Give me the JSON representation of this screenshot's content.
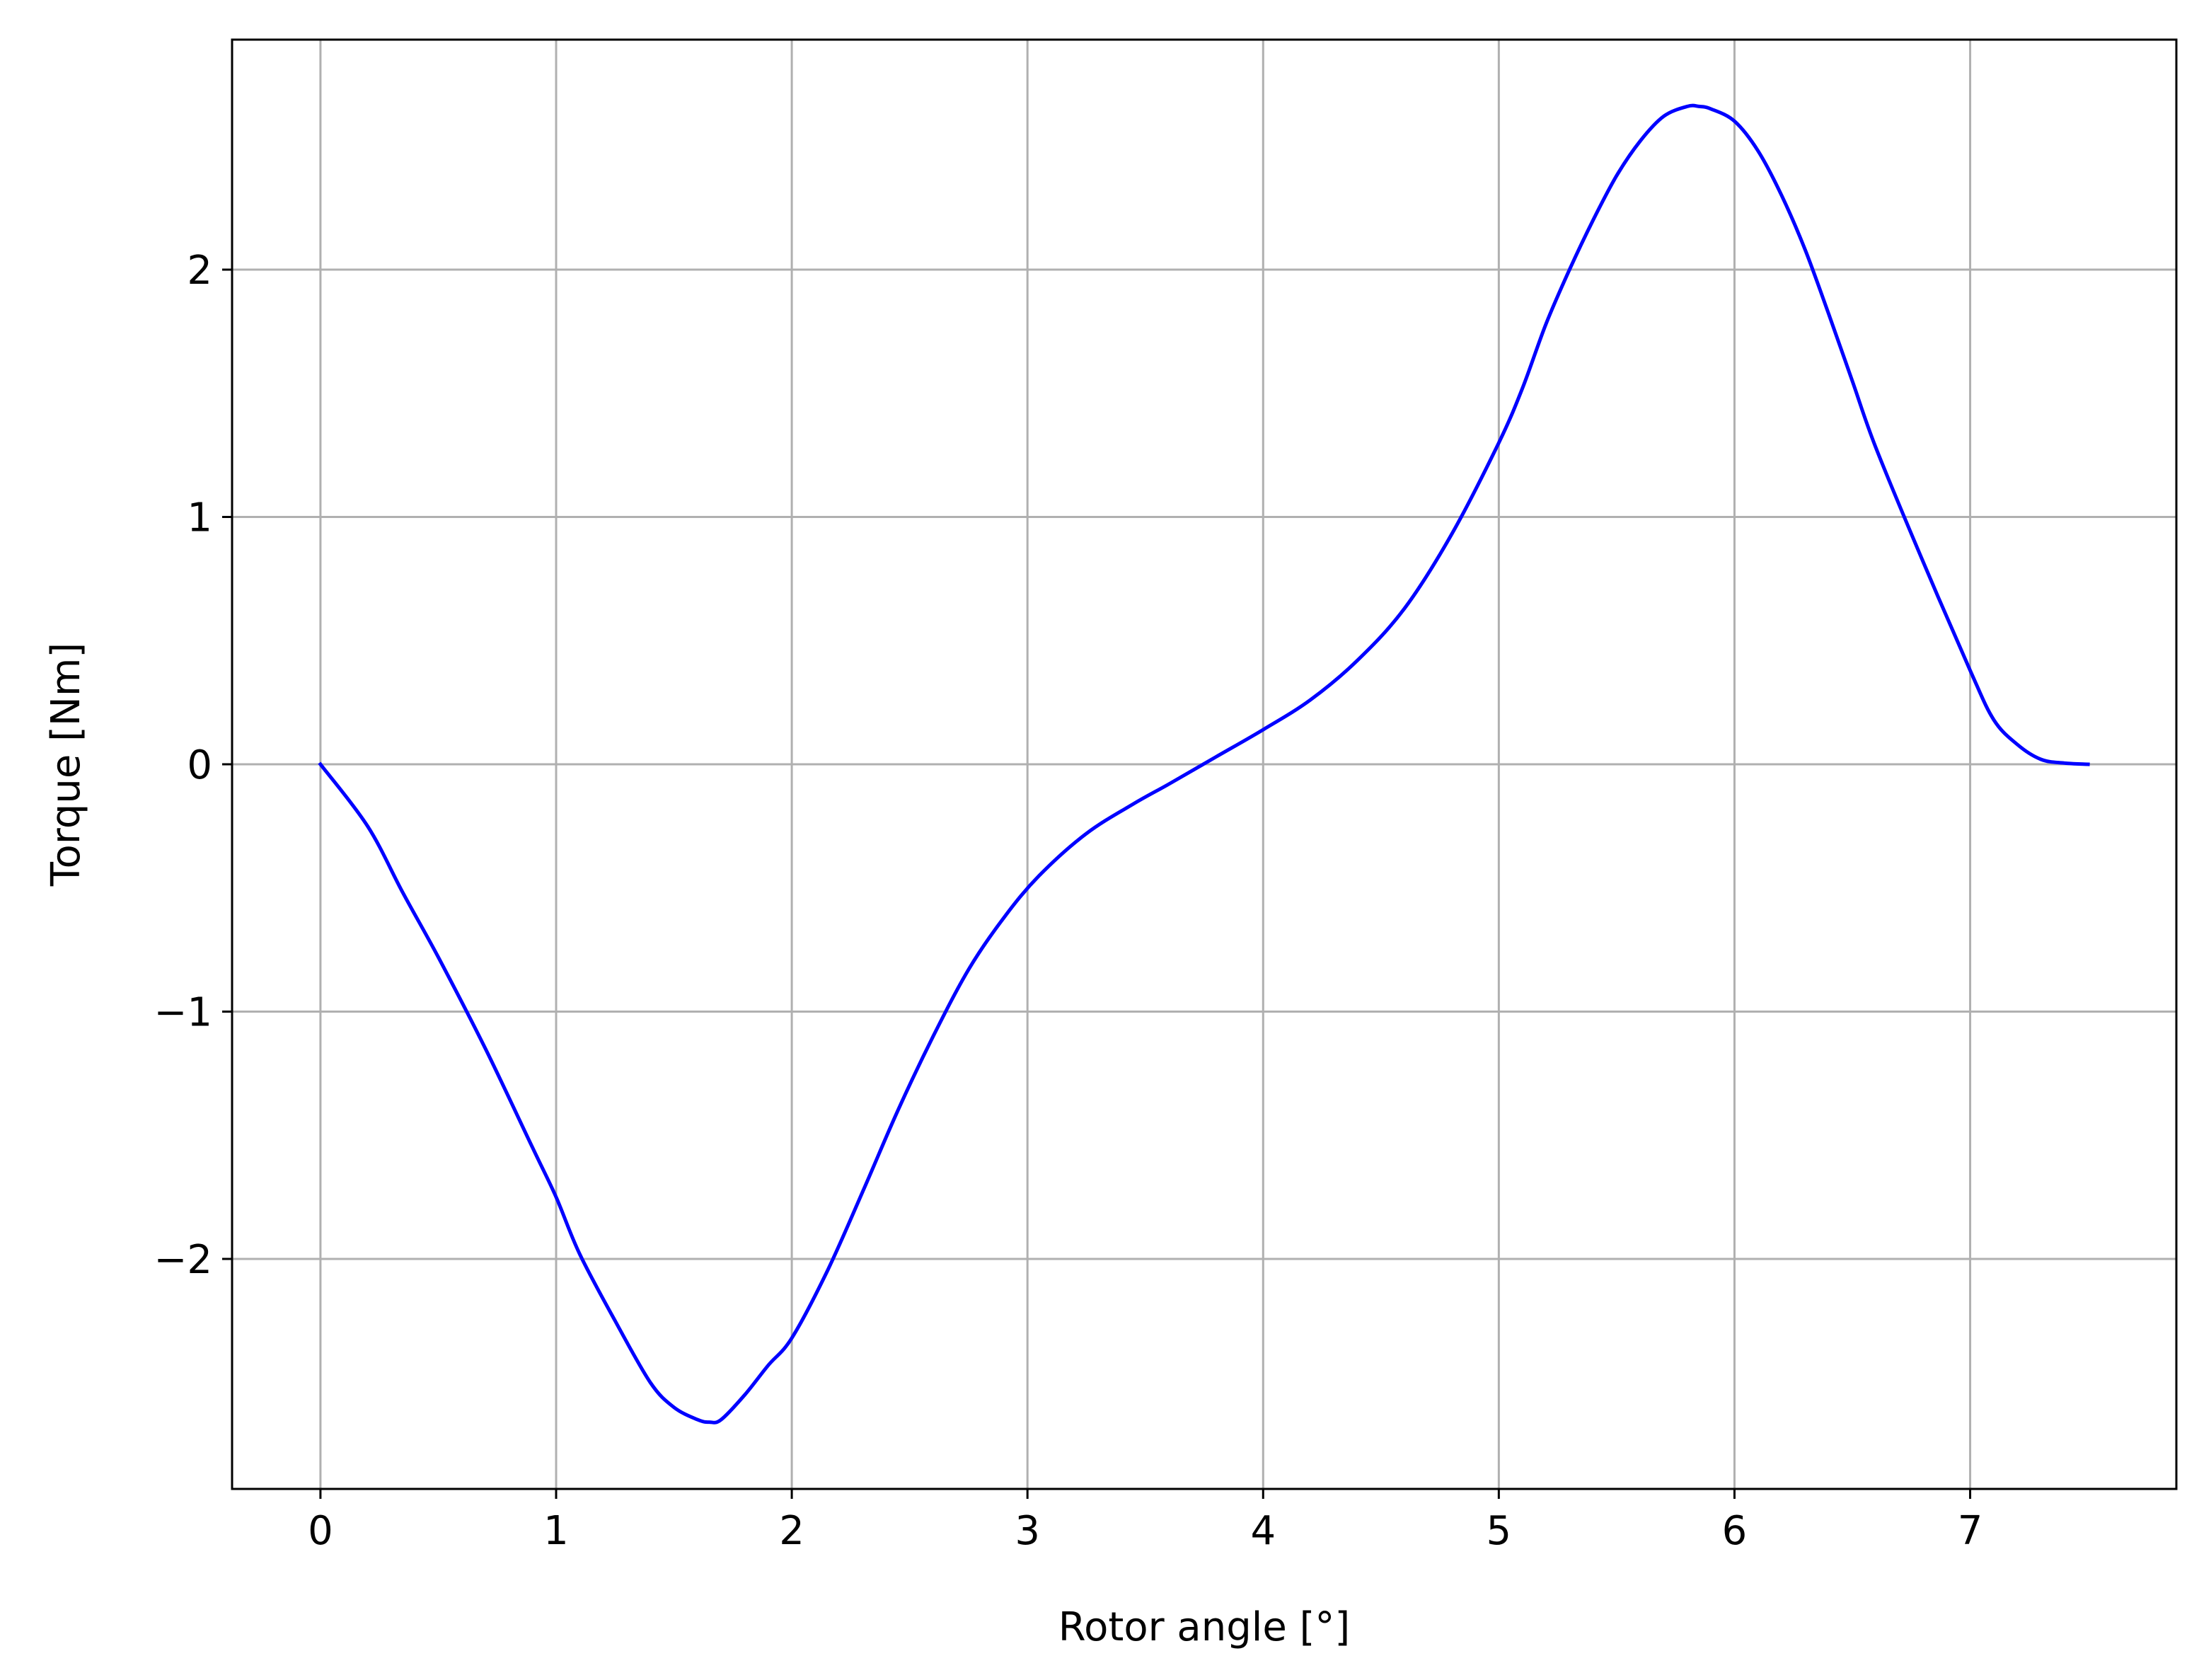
{
  "chart_data": {
    "type": "line",
    "title": "",
    "xlabel": "Rotor angle [°]",
    "ylabel": "Torque [Nm]",
    "xlim": [
      -0.375,
      7.875
    ],
    "ylim": [
      -2.93,
      2.93
    ],
    "x_ticks": [
      0,
      1,
      2,
      3,
      4,
      5,
      6,
      7
    ],
    "x_tick_labels": [
      "0",
      "1",
      "2",
      "3",
      "4",
      "5",
      "6",
      "7"
    ],
    "y_ticks": [
      -2,
      -1,
      0,
      1,
      2
    ],
    "y_tick_labels": [
      "−2",
      "−1",
      "0",
      "1",
      "2"
    ],
    "grid": true,
    "series": [
      {
        "color": "#0000ff",
        "x": [
          0,
          0.2,
          0.35,
          0.5,
          0.7,
          0.9,
          1.0,
          1.1,
          1.25,
          1.4,
          1.5,
          1.6,
          1.65,
          1.7,
          1.8,
          1.9,
          2.0,
          2.15,
          2.3,
          2.45,
          2.6,
          2.75,
          2.9,
          3.05,
          3.25,
          3.45,
          3.6,
          3.8,
          4.0,
          4.2,
          4.4,
          4.6,
          4.8,
          5.0,
          5.1,
          5.2,
          5.3,
          5.4,
          5.5,
          5.6,
          5.7,
          5.8,
          5.85,
          5.9,
          6.0,
          6.1,
          6.2,
          6.3,
          6.4,
          6.5,
          6.6,
          6.8,
          7.0,
          7.1,
          7.2,
          7.3,
          7.4,
          7.5
        ],
        "y": [
          0,
          -0.25,
          -0.52,
          -0.78,
          -1.15,
          -1.55,
          -1.75,
          -1.98,
          -2.25,
          -2.5,
          -2.6,
          -2.65,
          -2.66,
          -2.65,
          -2.55,
          -2.43,
          -2.32,
          -2.05,
          -1.73,
          -1.4,
          -1.1,
          -0.83,
          -0.62,
          -0.45,
          -0.28,
          -0.16,
          -0.08,
          0.03,
          0.14,
          0.26,
          0.42,
          0.63,
          0.93,
          1.3,
          1.52,
          1.78,
          2.0,
          2.2,
          2.38,
          2.52,
          2.62,
          2.66,
          2.66,
          2.65,
          2.6,
          2.48,
          2.3,
          2.08,
          1.82,
          1.55,
          1.28,
          0.82,
          0.38,
          0.18,
          0.08,
          0.02,
          0.005,
          0
        ]
      }
    ]
  }
}
